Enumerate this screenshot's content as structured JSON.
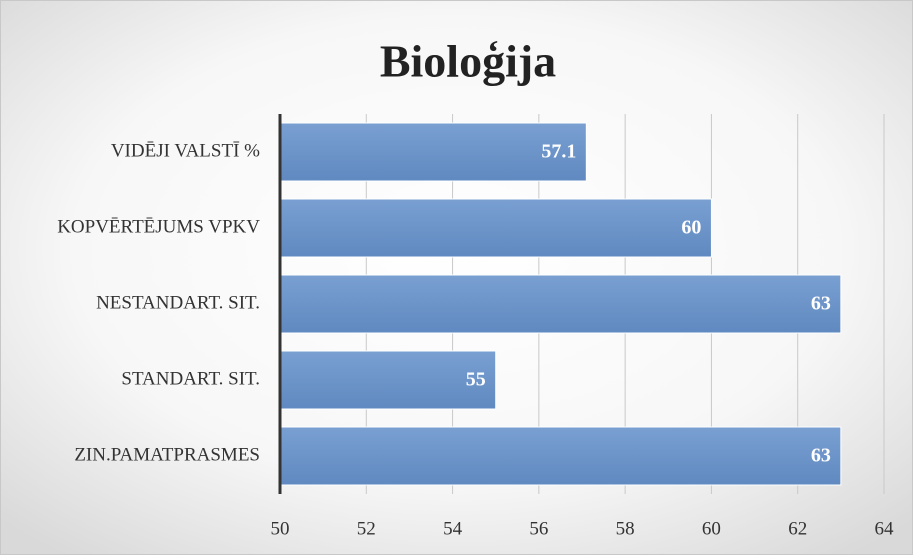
{
  "chart_data": {
    "type": "bar",
    "orientation": "horizontal",
    "title": "Bioloģija",
    "categories": [
      "VIDĒJI VALSTĪ %",
      "KOPVĒRTĒJUMS VPKV",
      "NESTANDART. SIT.",
      "STANDART. SIT.",
      "ZIN.PAMATPRASMES"
    ],
    "values": [
      57.1,
      60,
      63,
      55,
      63
    ],
    "color": "#6a93c8",
    "xlim": [
      50,
      64
    ],
    "xticks": [
      50,
      52,
      54,
      56,
      58,
      60,
      62,
      64
    ],
    "grid": true
  }
}
